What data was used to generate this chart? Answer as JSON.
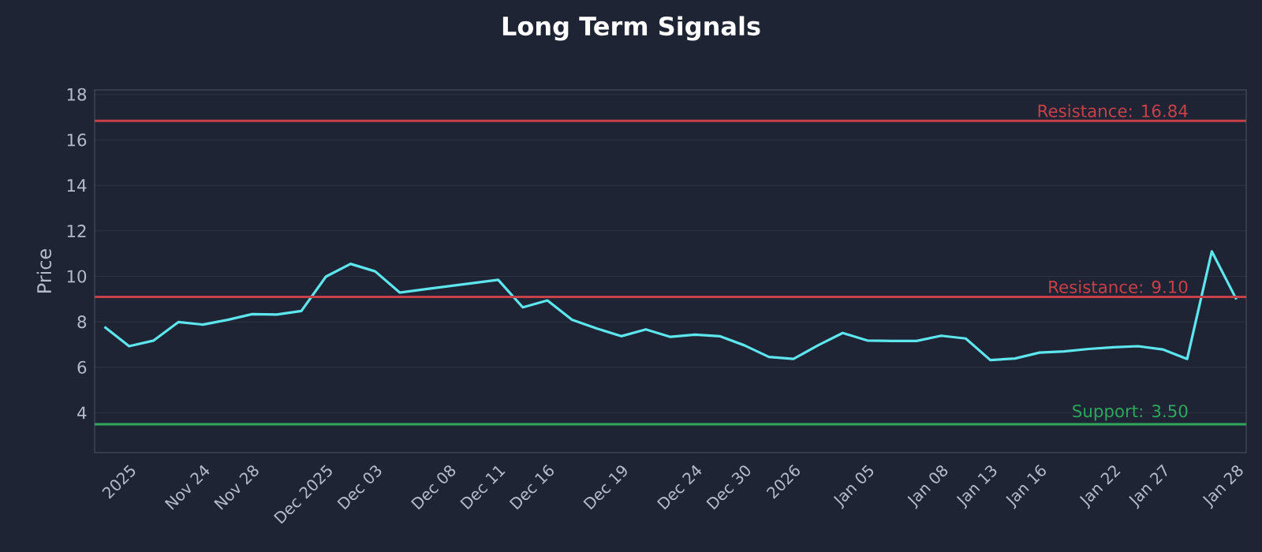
{
  "chart_data": {
    "type": "line",
    "title": "Long Term Signals",
    "ylabel": "Price",
    "categories": [
      null,
      "2025",
      null,
      null,
      "Nov 24",
      null,
      "Nov 28",
      null,
      null,
      "Dec 2025",
      null,
      "Dec 03",
      null,
      null,
      "Dec 08",
      null,
      "Dec 11",
      null,
      "Dec 16",
      null,
      null,
      "Dec 19",
      null,
      null,
      "Dec 24",
      null,
      "Dec 30",
      null,
      "2026",
      null,
      null,
      "Jan 05",
      null,
      null,
      "Jan 08",
      null,
      "Jan 13",
      null,
      "Jan 16",
      null,
      null,
      "Jan 22",
      null,
      "Jan 27",
      null,
      null,
      "Jan 28"
    ],
    "series": [
      {
        "color": "#5ee6ee",
        "values": [
          7.78,
          6.93,
          7.18,
          7.99,
          7.88,
          8.09,
          8.34,
          8.32,
          8.48,
          9.99,
          10.55,
          10.22,
          9.29,
          9.43,
          9.57,
          9.71,
          9.85,
          8.64,
          8.94,
          8.09,
          7.71,
          7.37,
          7.67,
          7.34,
          7.44,
          7.37,
          6.97,
          6.46,
          6.37,
          6.97,
          7.51,
          7.18,
          7.16,
          7.16,
          7.39,
          7.27,
          6.32,
          6.39,
          6.65,
          6.7,
          6.81,
          6.88,
          6.93,
          6.79,
          6.37,
          11.1,
          8.99
        ]
      }
    ],
    "ylim": [
      2.25,
      18.2
    ],
    "yticks": [
      4,
      6,
      8,
      10,
      12,
      14,
      16,
      18
    ],
    "grid": "y",
    "ref_lines": [
      {
        "axis": "y",
        "value": 16.84,
        "label": "Resistance: 16.84",
        "color": "#c8404a"
      },
      {
        "axis": "y",
        "value": 9.1,
        "label": "Resistance: 9.10",
        "color": "#c8404a"
      },
      {
        "axis": "y",
        "value": 3.5,
        "label": "Support: 3.50",
        "color": "#2ea85a"
      }
    ]
  }
}
